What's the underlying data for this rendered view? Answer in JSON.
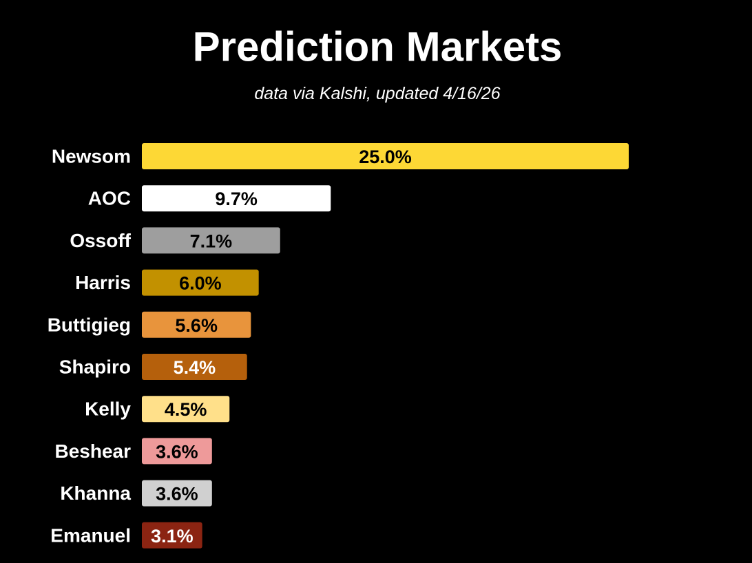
{
  "chart_data": {
    "type": "bar",
    "orientation": "horizontal",
    "title": "Prediction Markets",
    "subtitle": "data via Kalshi, updated 4/16/26",
    "categories": [
      "Newsom",
      "AOC",
      "Ossoff",
      "Harris",
      "Buttigieg",
      "Shapiro",
      "Kelly",
      "Beshear",
      "Khanna",
      "Emanuel"
    ],
    "values": [
      25.0,
      9.7,
      7.1,
      6.0,
      5.6,
      5.4,
      4.5,
      3.6,
      3.6,
      3.1
    ],
    "value_labels": [
      "25.0%",
      "9.7%",
      "7.1%",
      "6.0%",
      "5.6%",
      "5.4%",
      "4.5%",
      "3.6%",
      "3.6%",
      "3.1%"
    ],
    "colors": [
      "#fdd835",
      "#ffffff",
      "#9e9e9e",
      "#c29100",
      "#e8943c",
      "#b5600c",
      "#ffe08a",
      "#ee9a9a",
      "#d0d0d0",
      "#8b2412"
    ]
  }
}
